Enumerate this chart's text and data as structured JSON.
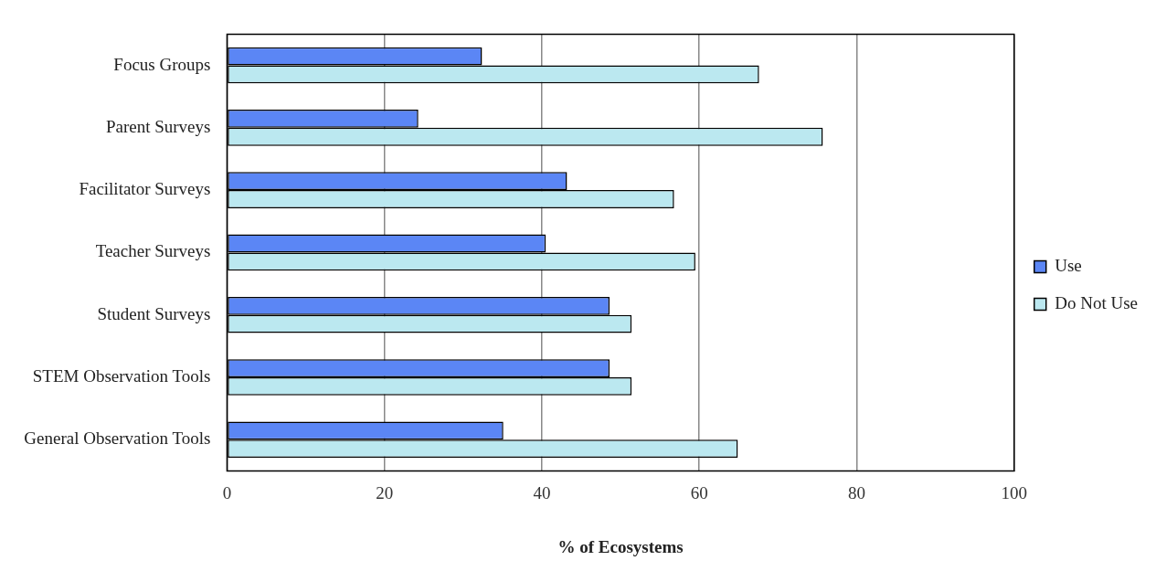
{
  "chart_data": {
    "type": "bar",
    "orientation": "horizontal",
    "xlabel": "% of Ecosystems",
    "categories": [
      "Focus Groups",
      "Parent Surveys",
      "Facilitator Surveys",
      "Teacher Surveys",
      "Student Surveys",
      "STEM Observation Tools",
      "General Observation Tools"
    ],
    "series": [
      {
        "name": "Use",
        "color": "#5b86f5",
        "values": [
          32.4,
          24.3,
          43.2,
          40.5,
          48.6,
          48.6,
          35.1
        ]
      },
      {
        "name": "Do Not Use",
        "color": "#bbe8f0",
        "values": [
          67.6,
          75.7,
          56.8,
          59.5,
          51.4,
          51.4,
          64.9
        ]
      }
    ],
    "xlim": [
      0,
      100
    ],
    "xticks": [
      0,
      20,
      40,
      60,
      80,
      100
    ],
    "grid": "x",
    "legend": "right"
  }
}
